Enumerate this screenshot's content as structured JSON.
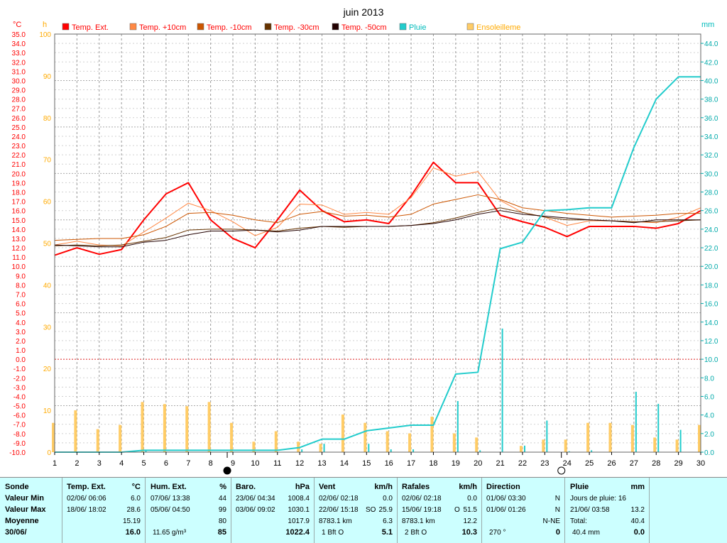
{
  "title": "juin 2013",
  "axis_units": {
    "left": "°C",
    "sun": "h",
    "right": "mm"
  },
  "legend": [
    {
      "label": "Temp. Ext.",
      "color": "#ff0000",
      "text_color": "#ff0000"
    },
    {
      "label": "Temp. +10cm",
      "color": "#ff8844",
      "text_color": "#ff0000"
    },
    {
      "label": "Temp. -10cm",
      "color": "#cc5500",
      "text_color": "#ff0000"
    },
    {
      "label": "Temp. -30cm",
      "color": "#663300",
      "text_color": "#ff0000"
    },
    {
      "label": "Temp. -50cm",
      "color": "#220000",
      "text_color": "#ff0000"
    },
    {
      "label": "Pluie",
      "color": "#22cccc",
      "text_color": "#00bbbb"
    },
    {
      "label": "Ensoleilleme",
      "color": "#ffcc66",
      "text_color": "#ffaa00"
    }
  ],
  "chart_data": {
    "type": "line",
    "x": [
      1,
      2,
      3,
      4,
      5,
      6,
      7,
      8,
      9,
      10,
      11,
      12,
      13,
      14,
      15,
      16,
      17,
      18,
      19,
      20,
      21,
      22,
      23,
      24,
      25,
      26,
      27,
      28,
      29,
      30
    ],
    "x_ticks": [
      "1",
      "2",
      "3",
      "4",
      "5",
      "6",
      "7",
      "8",
      "9",
      "10",
      "11",
      "12",
      "13",
      "14",
      "15",
      "16",
      "17",
      "18",
      "19",
      "20",
      "21",
      "22",
      "23",
      "24",
      "25",
      "26",
      "27",
      "28",
      "29",
      "30"
    ],
    "ylim": [
      -10,
      35
    ],
    "y_ticks": [
      "35.0",
      "34.0",
      "33.0",
      "32.0",
      "31.0",
      "30.0",
      "29.0",
      "28.0",
      "27.0",
      "26.0",
      "25.0",
      "24.0",
      "23.0",
      "22.0",
      "21.0",
      "20.0",
      "19.0",
      "18.0",
      "17.0",
      "16.0",
      "15.0",
      "14.0",
      "13.0",
      "12.0",
      "11.0",
      "10.0",
      "9.0",
      "8.0",
      "7.0",
      "6.0",
      "5.0",
      "4.0",
      "3.0",
      "2.0",
      "1.0",
      "0.0",
      "-1.0",
      "-2.0",
      "-3.0",
      "-4.0",
      "-5.0",
      "-6.0",
      "-7.0",
      "-8.0",
      "-9.0",
      "-10.0"
    ],
    "y2lim": [
      0,
      100
    ],
    "y2_ticks": [
      "100",
      "90",
      "80",
      "70",
      "60",
      "50",
      "40",
      "30",
      "20",
      "10",
      "0"
    ],
    "y3lim": [
      0,
      45
    ],
    "y3_ticks": [
      "44.0",
      "42.0",
      "40.0",
      "38.0",
      "36.0",
      "34.0",
      "32.0",
      "30.0",
      "28.0",
      "26.0",
      "24.0",
      "22.0",
      "20.0",
      "18.0",
      "16.0",
      "14.0",
      "12.0",
      "10.0",
      "8.0",
      "6.0",
      "4.0",
      "2.0",
      "0.0"
    ],
    "grid": true,
    "series": [
      {
        "name": "Temp. Ext.",
        "axis": "left",
        "color": "#ff0000",
        "width": 2,
        "values": [
          11.2,
          12.0,
          11.3,
          11.8,
          15.0,
          17.8,
          19.0,
          15.0,
          13.0,
          12.0,
          15.0,
          18.2,
          16.0,
          14.8,
          15.0,
          14.6,
          17.6,
          21.2,
          19.0,
          19.0,
          15.5,
          14.8,
          14.2,
          13.2,
          14.3,
          14.3,
          14.3,
          14.1,
          14.6,
          16.0
        ]
      },
      {
        "name": "Temp. +10cm",
        "axis": "left",
        "color": "#ff8844",
        "width": 1,
        "values": [
          12.3,
          12.7,
          12.3,
          12.2,
          13.7,
          15.2,
          16.8,
          16.0,
          14.8,
          13.3,
          14.2,
          16.7,
          16.6,
          15.6,
          15.8,
          15.6,
          17.4,
          20.6,
          19.7,
          20.2,
          17.1,
          15.8,
          15.3,
          14.4,
          14.9,
          14.9,
          14.8,
          14.7,
          15.3,
          16.3
        ]
      },
      {
        "name": "Temp. -10cm",
        "axis": "left",
        "color": "#cc5500",
        "width": 1,
        "values": [
          12.8,
          12.9,
          13.0,
          13.0,
          13.4,
          14.3,
          15.7,
          15.8,
          15.5,
          15.0,
          14.7,
          15.6,
          15.9,
          15.4,
          15.5,
          15.3,
          15.6,
          16.7,
          17.2,
          17.7,
          17.2,
          16.3,
          16.0,
          15.7,
          15.5,
          15.3,
          15.4,
          15.5,
          15.7,
          15.7
        ]
      },
      {
        "name": "Temp. -30cm",
        "axis": "left",
        "color": "#663300",
        "width": 1,
        "values": [
          12.2,
          12.3,
          12.2,
          12.3,
          12.7,
          13.1,
          13.9,
          14.0,
          14.0,
          13.9,
          13.8,
          14.1,
          14.3,
          14.2,
          14.3,
          14.3,
          14.4,
          14.7,
          15.2,
          15.8,
          16.3,
          15.8,
          15.3,
          15.0,
          15.0,
          14.9,
          14.8,
          14.8,
          14.9,
          15.0
        ]
      },
      {
        "name": "Temp. -50cm",
        "axis": "left",
        "color": "#220000",
        "width": 1,
        "values": [
          12.3,
          12.2,
          12.1,
          12.1,
          12.6,
          12.8,
          13.4,
          13.8,
          13.8,
          13.9,
          13.7,
          13.9,
          14.3,
          14.3,
          14.3,
          14.3,
          14.4,
          14.6,
          15.0,
          15.6,
          16.0,
          15.6,
          15.4,
          15.2,
          15.0,
          14.9,
          14.7,
          15.0,
          15.0,
          15.0
        ]
      },
      {
        "name": "Pluie",
        "axis": "right",
        "color": "#22cccc",
        "width": 2,
        "values": [
          0,
          0,
          0,
          0,
          0.2,
          0.2,
          0.2,
          0.2,
          0.2,
          0.2,
          0.2,
          0.5,
          1.4,
          1.4,
          2.3,
          2.6,
          2.9,
          2.9,
          8.4,
          8.6,
          21.9,
          22.6,
          26.0,
          26.1,
          26.3,
          26.3,
          32.8,
          38.0,
          40.4,
          40.4
        ]
      }
    ],
    "bars": [
      {
        "name": "Ensoleilleme",
        "axis": "sun",
        "color": "#ffcc66",
        "width": 4,
        "values": [
          7,
          10,
          5.5,
          6.5,
          12,
          11.5,
          11,
          12,
          7,
          2.5,
          5,
          2.5,
          2,
          9,
          7,
          5,
          4.5,
          8.5,
          4.5,
          3.5,
          0,
          1.5,
          3,
          3,
          7,
          7,
          6.5,
          3.5,
          3,
          6.5
        ]
      },
      {
        "name": "Pluie (jour)",
        "axis": "right",
        "color": "#22cccc",
        "width": 2,
        "values": [
          0,
          0,
          0,
          0,
          0.2,
          0,
          0,
          0,
          0,
          0,
          0,
          0.3,
          0.9,
          0,
          0.9,
          0.3,
          0.3,
          0,
          5.5,
          0.2,
          13.3,
          0.7,
          3.4,
          0.1,
          0.2,
          0,
          6.5,
          5.2,
          2.4,
          0
        ]
      }
    ],
    "markers": [
      {
        "day": 9,
        "symbol": "full-moon"
      },
      {
        "day": 24,
        "symbol": "new-moon"
      }
    ]
  },
  "summary": {
    "sonde": {
      "header": "Sonde",
      "rows": [
        "Valeur Min",
        "Valeur Max",
        "Moyenne",
        "30/06/"
      ]
    },
    "temp": {
      "header": "Temp. Ext.",
      "unit": "°C",
      "min_date": "02/06/  06:06",
      "min_val": "6.0",
      "max_date": "18/06/  18:02",
      "max_val": "28.6",
      "mean": "15.19",
      "current": "16.0"
    },
    "hum": {
      "header": "Hum. Ext.",
      "unit": "%",
      "min_date": "07/06/  13:38",
      "min_val": "44",
      "max_date": "05/06/  04:50",
      "max_val": "99",
      "mean": "80",
      "abs": "11.65 g/m³",
      "current": "85"
    },
    "baro": {
      "header": "Baro.",
      "unit": "hPa",
      "min_date": "23/06/  04:34",
      "min_val": "1008.4",
      "max_date": "03/06/  09:02",
      "max_val": "1030.1",
      "mean": "1017.9",
      "current": "1022.4"
    },
    "vent": {
      "header": "Vent",
      "unit": "km/h",
      "r1_date": "02/06/  02:18",
      "r1_val": "0.0",
      "r2_date": "22/06/  15:18",
      "r2_dir": "SO",
      "r2_val": "25.9",
      "dist": "8783.1 km",
      "mean": "6.3",
      "bft": "1  Bft  O",
      "current": "5.1"
    },
    "rafales": {
      "header": "Rafales",
      "unit": "km/h",
      "r1_date": "02/06/  02:18",
      "r1_val": "0.0",
      "r2_date": "15/06/  19:18",
      "r2_dir": "O",
      "r2_val": "51.5",
      "dist": "8783.1 km",
      "mean": "12.2",
      "bft": "2  Bft  O",
      "current": "10.3"
    },
    "direction": {
      "header": "Direction",
      "r1_date": "01/06/  03:30",
      "r1_val": "N",
      "r2_date": "01/06/  01:26",
      "r2_val": "N",
      "mean": "N-NE",
      "deg": "270 °",
      "current": "0"
    },
    "pluie": {
      "header": "Pluie",
      "unit": "mm",
      "jours": "Jours de pluie: 16",
      "max_date": "21/06/  03:58",
      "max_val": "13.2",
      "total_label": "Total:",
      "total_val": "40.4",
      "cum": "40.4 mm",
      "current": "0.0"
    }
  }
}
